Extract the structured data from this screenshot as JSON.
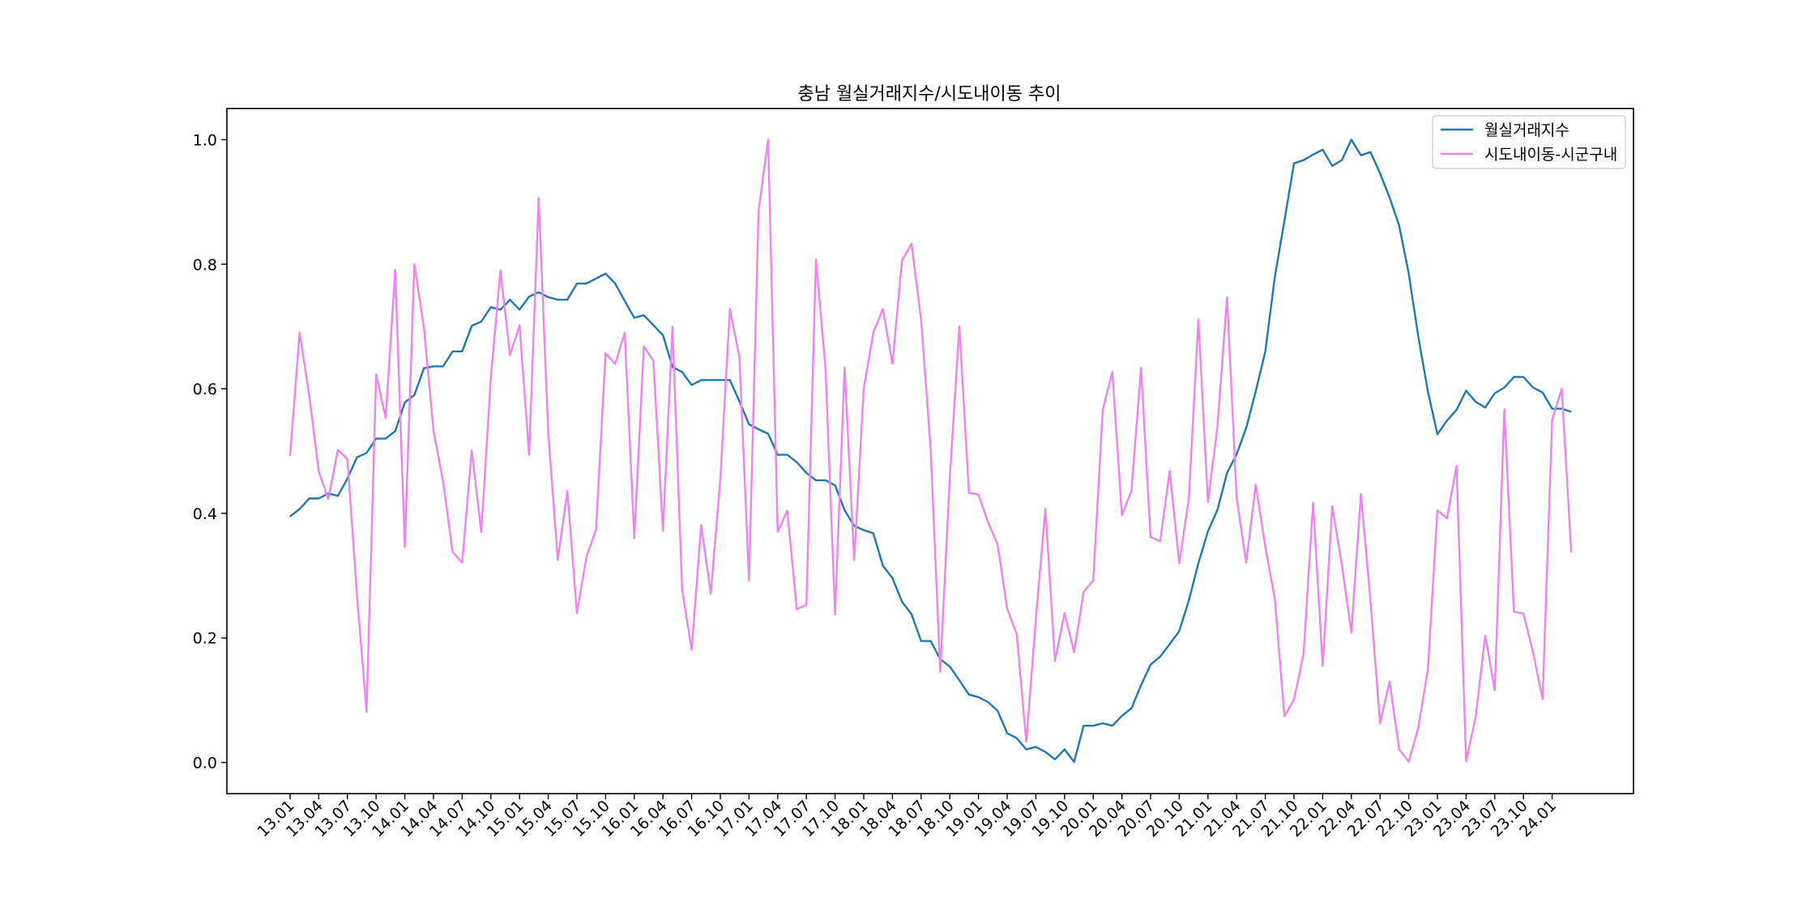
{
  "chart_data": {
    "type": "line",
    "title": "충남 월실거래지수/시도내이동 추이",
    "xlabel": "",
    "ylabel": "",
    "ylim": [
      -0.05,
      1.05
    ],
    "yticks": [
      0.0,
      0.2,
      0.4,
      0.6,
      0.8,
      1.0
    ],
    "ytick_labels": [
      "0.0",
      "0.2",
      "0.4",
      "0.6",
      "0.8",
      "1.0"
    ],
    "xtick_labels": [
      "13.01",
      "13.04",
      "13.07",
      "13.10",
      "14.01",
      "14.04",
      "14.07",
      "14.10",
      "15.01",
      "15.04",
      "15.07",
      "15.10",
      "16.01",
      "16.04",
      "16.07",
      "16.10",
      "17.01",
      "17.04",
      "17.07",
      "17.10",
      "18.01",
      "18.04",
      "18.07",
      "18.10",
      "19.01",
      "19.04",
      "19.07",
      "19.10",
      "20.01",
      "20.04",
      "20.07",
      "20.10",
      "21.01",
      "21.04",
      "21.07",
      "21.10",
      "22.01",
      "22.04",
      "22.07",
      "22.10",
      "23.01",
      "23.04",
      "23.07",
      "23.10",
      "24.01"
    ],
    "grid": false,
    "legend_position": "top-right",
    "series": [
      {
        "name": "월실거래지수",
        "color": "#1f77b4",
        "values": [
          0.395,
          0.407,
          0.424,
          0.424,
          0.432,
          0.428,
          0.456,
          0.49,
          0.497,
          0.52,
          0.52,
          0.532,
          0.578,
          0.59,
          0.633,
          0.636,
          0.636,
          0.66,
          0.66,
          0.701,
          0.708,
          0.731,
          0.727,
          0.743,
          0.727,
          0.748,
          0.755,
          0.747,
          0.743,
          0.743,
          0.769,
          0.769,
          0.777,
          0.785,
          0.769,
          0.741,
          0.714,
          0.718,
          0.702,
          0.686,
          0.635,
          0.627,
          0.606,
          0.614,
          0.614,
          0.614,
          0.614,
          0.58,
          0.543,
          0.535,
          0.528,
          0.494,
          0.494,
          0.482,
          0.465,
          0.453,
          0.453,
          0.445,
          0.405,
          0.38,
          0.373,
          0.368,
          0.316,
          0.296,
          0.258,
          0.238,
          0.195,
          0.195,
          0.166,
          0.154,
          0.132,
          0.109,
          0.105,
          0.097,
          0.083,
          0.047,
          0.039,
          0.021,
          0.025,
          0.017,
          0.005,
          0.021,
          0.001,
          0.059,
          0.059,
          0.063,
          0.059,
          0.075,
          0.087,
          0.124,
          0.157,
          0.17,
          0.19,
          0.211,
          0.26,
          0.32,
          0.371,
          0.406,
          0.465,
          0.495,
          0.537,
          0.596,
          0.66,
          0.78,
          0.87,
          0.962,
          0.967,
          0.976,
          0.984,
          0.958,
          0.967,
          1.0,
          0.975,
          0.98,
          0.946,
          0.907,
          0.862,
          0.785,
          0.684,
          0.596,
          0.527,
          0.549,
          0.566,
          0.597,
          0.579,
          0.57,
          0.593,
          0.602,
          0.619,
          0.619,
          0.602,
          0.594,
          0.568,
          0.568,
          0.563
        ]
      },
      {
        "name": "시도내이동-시군구내",
        "color": "#ee82ee",
        "values": [
          0.492,
          0.69,
          0.59,
          0.467,
          0.423,
          0.502,
          0.487,
          0.268,
          0.081,
          0.623,
          0.553,
          0.791,
          0.346,
          0.8,
          0.698,
          0.533,
          0.451,
          0.338,
          0.321,
          0.501,
          0.37,
          0.618,
          0.79,
          0.654,
          0.702,
          0.494,
          0.906,
          0.53,
          0.325,
          0.436,
          0.24,
          0.33,
          0.374,
          0.657,
          0.64,
          0.69,
          0.36,
          0.668,
          0.645,
          0.372,
          0.7,
          0.278,
          0.181,
          0.381,
          0.271,
          0.455,
          0.728,
          0.65,
          0.292,
          0.886,
          1.0,
          0.37,
          0.404,
          0.246,
          0.253,
          0.808,
          0.633,
          0.238,
          0.634,
          0.325,
          0.6,
          0.69,
          0.728,
          0.64,
          0.806,
          0.833,
          0.711,
          0.503,
          0.146,
          0.457,
          0.7,
          0.433,
          0.43,
          0.386,
          0.35,
          0.247,
          0.206,
          0.033,
          0.23,
          0.407,
          0.163,
          0.24,
          0.177,
          0.274,
          0.292,
          0.566,
          0.627,
          0.397,
          0.436,
          0.634,
          0.362,
          0.355,
          0.468,
          0.32,
          0.423,
          0.711,
          0.418,
          0.54,
          0.747,
          0.425,
          0.321,
          0.446,
          0.346,
          0.262,
          0.074,
          0.101,
          0.174,
          0.417,
          0.155,
          0.411,
          0.318,
          0.209,
          0.431,
          0.26,
          0.063,
          0.13,
          0.021,
          0.001,
          0.056,
          0.149,
          0.405,
          0.392,
          0.476,
          0.002,
          0.073,
          0.204,
          0.116,
          0.567,
          0.242,
          0.239,
          0.177,
          0.102,
          0.55,
          0.6,
          0.337
        ]
      }
    ]
  }
}
